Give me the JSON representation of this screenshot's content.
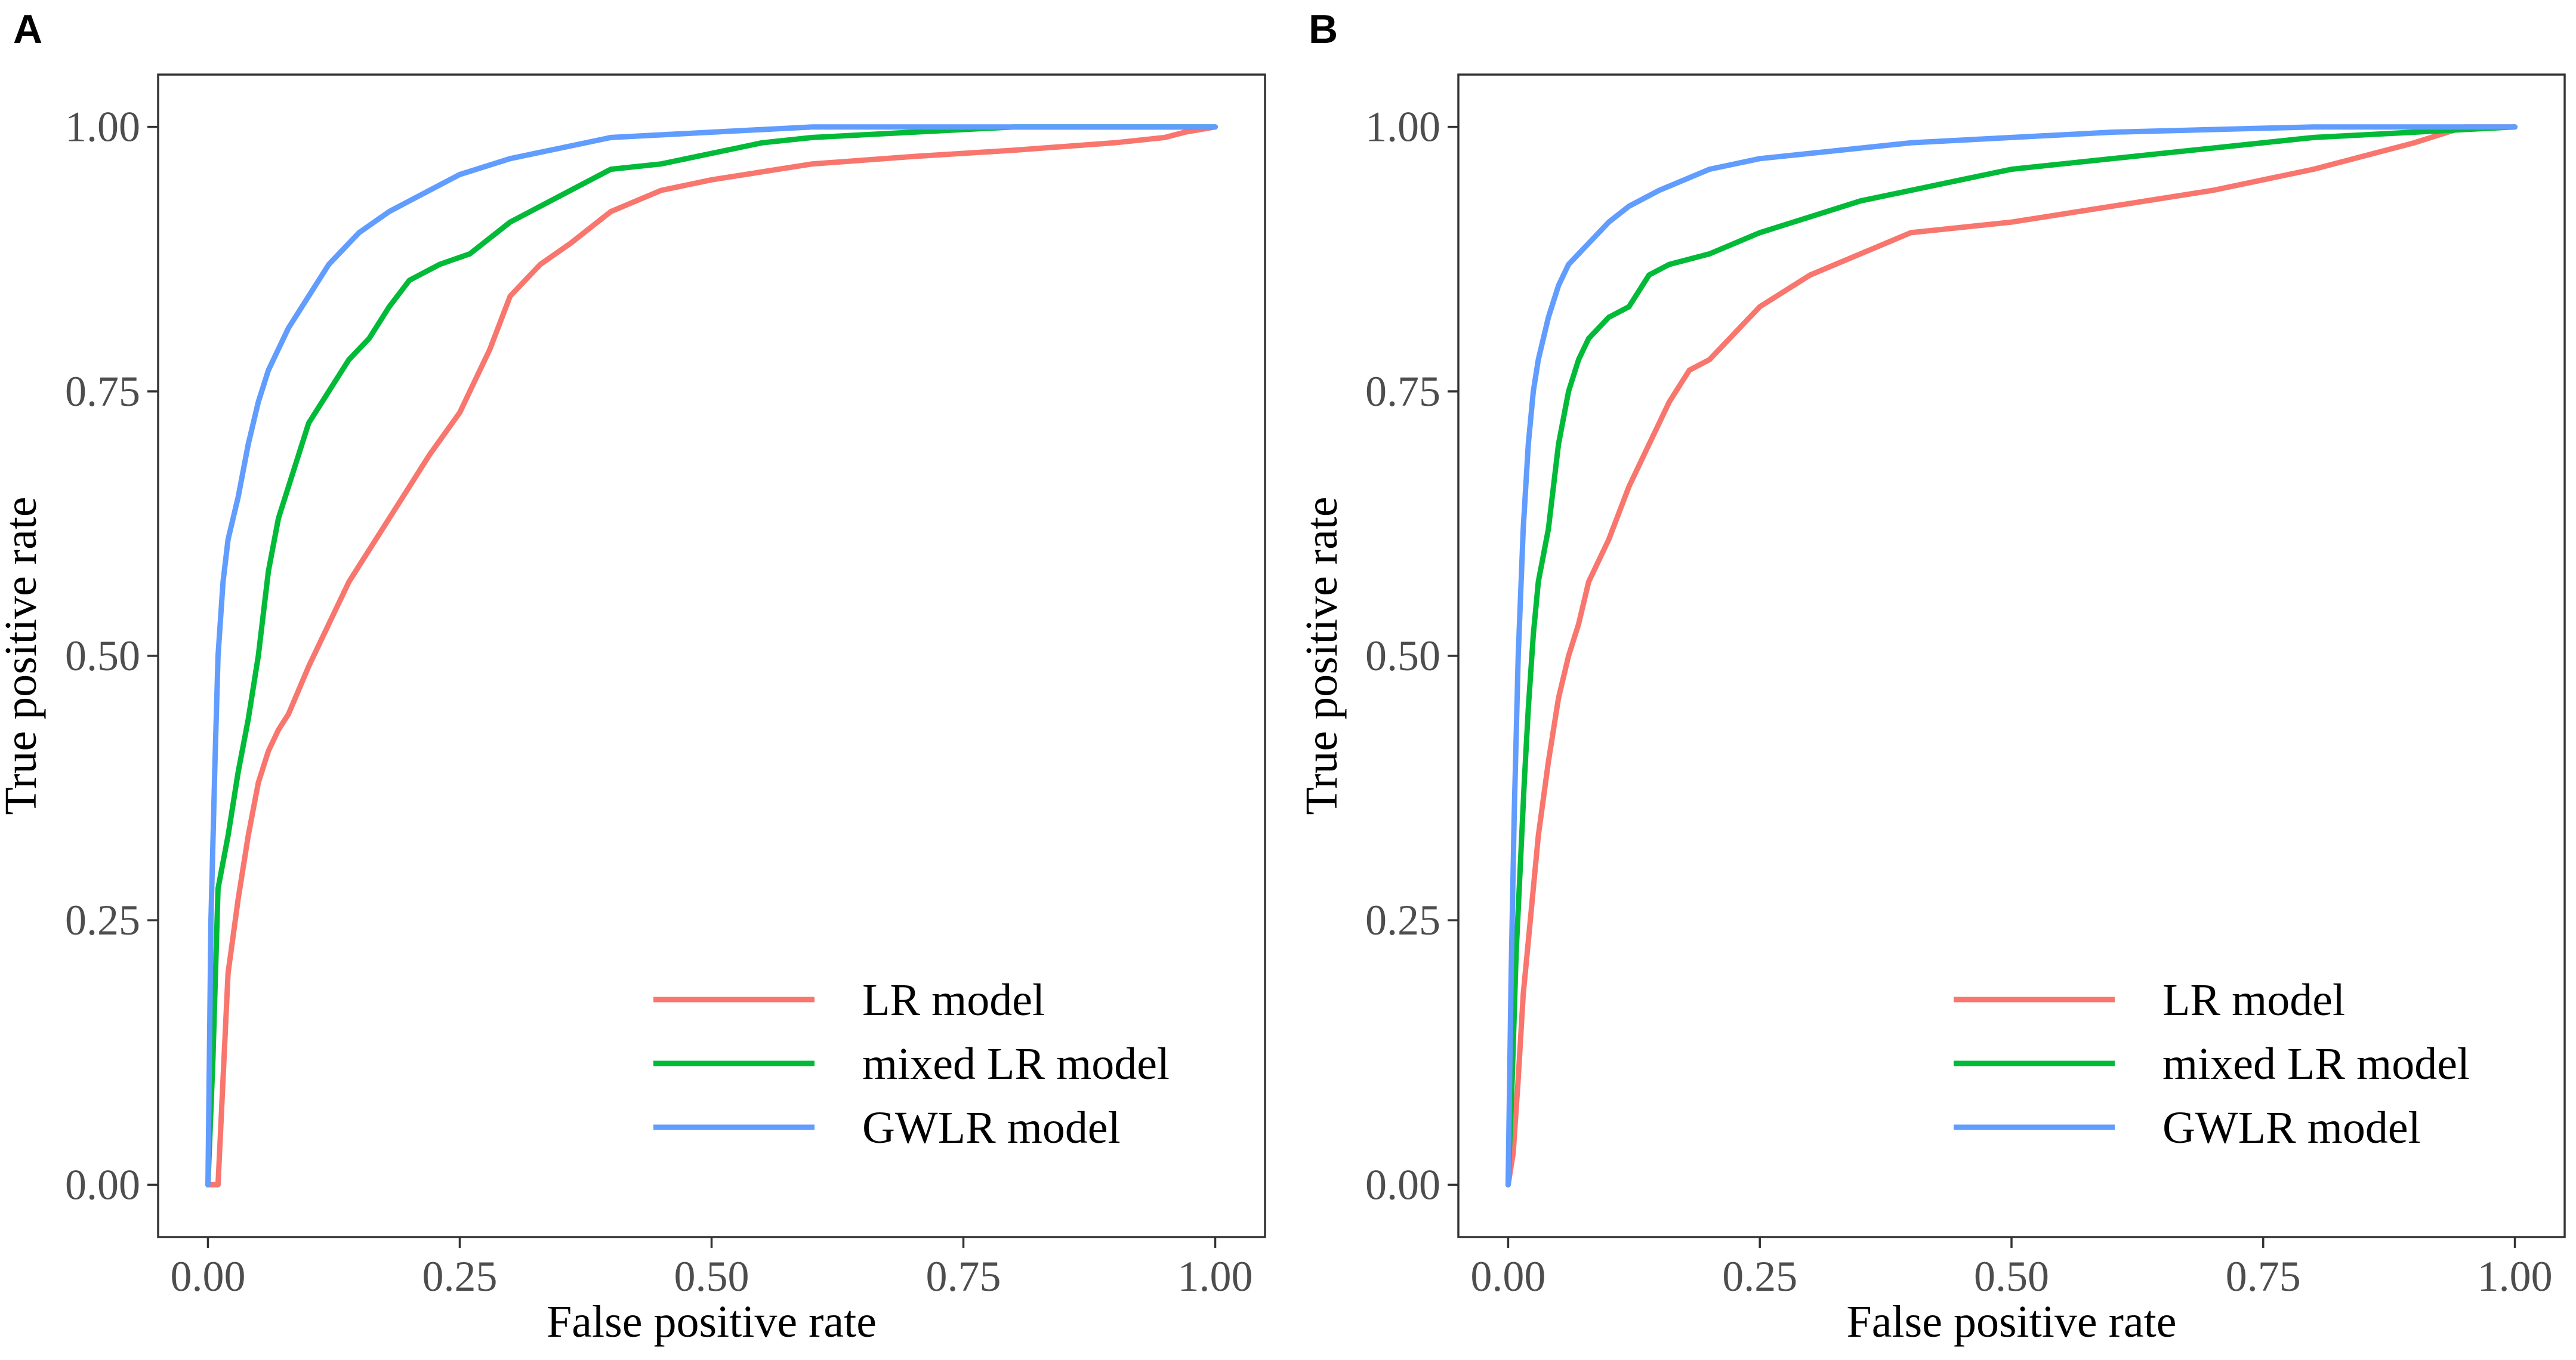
{
  "chart_data": [
    {
      "type": "line",
      "panel_label": "A",
      "xlabel": "False positive rate",
      "ylabel": "True positive rate",
      "xlim": [
        0,
        1
      ],
      "ylim": [
        0,
        1
      ],
      "xticks": [
        0,
        0.25,
        0.5,
        0.75,
        1
      ],
      "xtick_labels": [
        "0.00",
        "0.25",
        "0.50",
        "0.75",
        "1.00"
      ],
      "yticks": [
        0,
        0.25,
        0.5,
        0.75,
        1
      ],
      "ytick_labels": [
        "0.00",
        "0.25",
        "0.50",
        "0.75",
        "1.00"
      ],
      "grid": false,
      "legend_position": "bottom-right",
      "series": [
        {
          "name": "LR model",
          "color": "#F8766D",
          "x": [
            0,
            0.01,
            0.015,
            0.02,
            0.03,
            0.04,
            0.05,
            0.06,
            0.07,
            0.08,
            0.1,
            0.12,
            0.14,
            0.16,
            0.18,
            0.2,
            0.22,
            0.25,
            0.28,
            0.3,
            0.33,
            0.36,
            0.4,
            0.45,
            0.5,
            0.6,
            0.7,
            0.8,
            0.9,
            0.95,
            0.97,
            1.0
          ],
          "y": [
            0,
            0,
            0.1,
            0.2,
            0.27,
            0.33,
            0.38,
            0.41,
            0.43,
            0.445,
            0.49,
            0.53,
            0.57,
            0.6,
            0.63,
            0.66,
            0.69,
            0.73,
            0.79,
            0.84,
            0.87,
            0.89,
            0.92,
            0.94,
            0.95,
            0.965,
            0.972,
            0.978,
            0.985,
            0.99,
            0.995,
            1.0
          ]
        },
        {
          "name": "mixed LR model",
          "color": "#00BA38",
          "x": [
            0,
            0.005,
            0.01,
            0.02,
            0.03,
            0.04,
            0.05,
            0.06,
            0.07,
            0.08,
            0.1,
            0.12,
            0.14,
            0.16,
            0.18,
            0.2,
            0.23,
            0.26,
            0.3,
            0.35,
            0.4,
            0.45,
            0.5,
            0.55,
            0.6,
            0.7,
            0.8,
            0.9,
            1.0
          ],
          "y": [
            0,
            0.12,
            0.28,
            0.33,
            0.39,
            0.44,
            0.5,
            0.58,
            0.63,
            0.66,
            0.72,
            0.75,
            0.78,
            0.8,
            0.83,
            0.855,
            0.87,
            0.88,
            0.91,
            0.935,
            0.96,
            0.965,
            0.975,
            0.985,
            0.99,
            0.995,
            1.0,
            1.0,
            1.0
          ]
        },
        {
          "name": "GWLR model",
          "color": "#619CFF",
          "x": [
            0,
            0.003,
            0.007,
            0.01,
            0.015,
            0.02,
            0.03,
            0.04,
            0.05,
            0.06,
            0.07,
            0.08,
            0.1,
            0.12,
            0.15,
            0.18,
            0.2,
            0.25,
            0.3,
            0.35,
            0.4,
            0.5,
            0.6,
            0.7,
            0.8,
            1.0
          ],
          "y": [
            0,
            0.25,
            0.4,
            0.5,
            0.57,
            0.61,
            0.65,
            0.7,
            0.74,
            0.77,
            0.79,
            0.81,
            0.84,
            0.87,
            0.9,
            0.92,
            0.93,
            0.955,
            0.97,
            0.98,
            0.99,
            0.995,
            1.0,
            1.0,
            1.0,
            1.0
          ]
        }
      ]
    },
    {
      "type": "line",
      "panel_label": "B",
      "xlabel": "False positive rate",
      "ylabel": "True positive rate",
      "xlim": [
        0,
        1
      ],
      "ylim": [
        0,
        1
      ],
      "xticks": [
        0,
        0.25,
        0.5,
        0.75,
        1
      ],
      "xtick_labels": [
        "0.00",
        "0.25",
        "0.50",
        "0.75",
        "1.00"
      ],
      "yticks": [
        0,
        0.25,
        0.5,
        0.75,
        1
      ],
      "ytick_labels": [
        "0.00",
        "0.25",
        "0.50",
        "0.75",
        "1.00"
      ],
      "grid": false,
      "legend_position": "bottom-right",
      "series": [
        {
          "name": "LR model",
          "color": "#F8766D",
          "x": [
            0,
            0.005,
            0.01,
            0.015,
            0.02,
            0.03,
            0.04,
            0.05,
            0.06,
            0.07,
            0.08,
            0.1,
            0.12,
            0.14,
            0.16,
            0.18,
            0.2,
            0.22,
            0.25,
            0.3,
            0.35,
            0.4,
            0.5,
            0.6,
            0.7,
            0.8,
            0.9,
            0.95,
            1.0
          ],
          "y": [
            0,
            0.03,
            0.1,
            0.18,
            0.23,
            0.33,
            0.4,
            0.46,
            0.5,
            0.53,
            0.57,
            0.61,
            0.66,
            0.7,
            0.74,
            0.77,
            0.78,
            0.8,
            0.83,
            0.86,
            0.88,
            0.9,
            0.91,
            0.925,
            0.94,
            0.96,
            0.985,
            1.0,
            1.0
          ]
        },
        {
          "name": "mixed LR model",
          "color": "#00BA38",
          "x": [
            0,
            0.004,
            0.008,
            0.012,
            0.016,
            0.02,
            0.025,
            0.03,
            0.04,
            0.05,
            0.06,
            0.07,
            0.08,
            0.1,
            0.12,
            0.14,
            0.16,
            0.2,
            0.25,
            0.3,
            0.35,
            0.4,
            0.5,
            0.6,
            0.7,
            0.8,
            0.9,
            1.0
          ],
          "y": [
            0,
            0.1,
            0.22,
            0.3,
            0.38,
            0.45,
            0.52,
            0.57,
            0.62,
            0.7,
            0.75,
            0.78,
            0.8,
            0.82,
            0.83,
            0.86,
            0.87,
            0.88,
            0.9,
            0.915,
            0.93,
            0.94,
            0.96,
            0.97,
            0.98,
            0.99,
            0.995,
            1.0
          ]
        },
        {
          "name": "GWLR model",
          "color": "#619CFF",
          "x": [
            0,
            0.003,
            0.006,
            0.01,
            0.015,
            0.02,
            0.025,
            0.03,
            0.04,
            0.05,
            0.06,
            0.08,
            0.1,
            0.12,
            0.15,
            0.2,
            0.25,
            0.3,
            0.4,
            0.5,
            0.6,
            0.8,
            1.0
          ],
          "y": [
            0,
            0.2,
            0.35,
            0.5,
            0.62,
            0.7,
            0.75,
            0.78,
            0.82,
            0.85,
            0.87,
            0.89,
            0.91,
            0.925,
            0.94,
            0.96,
            0.97,
            0.975,
            0.985,
            0.99,
            0.995,
            1.0,
            1.0
          ]
        }
      ]
    }
  ]
}
